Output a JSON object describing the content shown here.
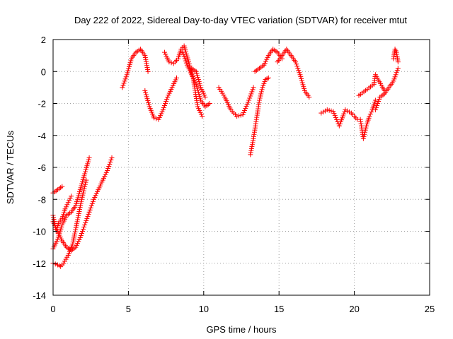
{
  "chart_data": {
    "type": "scatter",
    "title": "Day 222 of 2022, Sidereal Day-to-day VTEC variation (SDTVAR) for receiver mtut",
    "xlabel": "GPS time / hours",
    "ylabel": "SDTVAR / TECUs",
    "xlim": [
      0,
      25
    ],
    "ylim": [
      -14,
      2
    ],
    "xticks": [
      0,
      5,
      10,
      15,
      20,
      25
    ],
    "yticks": [
      2,
      0,
      -2,
      -4,
      -6,
      -8,
      -10,
      -12,
      -14
    ],
    "xtick_labels": [
      "0",
      "5",
      "10",
      "15",
      "20",
      "25"
    ],
    "ytick_labels": [
      "2",
      "0",
      "-2",
      "-4",
      "-6",
      "-8",
      "-10",
      "-12",
      "-14"
    ],
    "grid": true,
    "marker": "+",
    "color": "#ff0000",
    "series": [
      {
        "name": "s1",
        "x": [
          0.0,
          0.3,
          0.6
        ],
        "y": [
          -7.6,
          -7.4,
          -7.2
        ]
      },
      {
        "name": "s2",
        "x": [
          0.0,
          0.2,
          0.4,
          0.6,
          0.8,
          1.0,
          1.2
        ],
        "y": [
          -9.0,
          -10.0,
          -9.4,
          -9.2,
          -8.6,
          -8.2,
          -7.8
        ]
      },
      {
        "name": "s3",
        "x": [
          0.0,
          0.3,
          0.6,
          0.9,
          1.2,
          1.5,
          1.8,
          2.1,
          2.4
        ],
        "y": [
          -11.1,
          -10.5,
          -9.6,
          -9.0,
          -8.8,
          -8.4,
          -7.4,
          -6.4,
          -5.4
        ]
      },
      {
        "name": "s4",
        "x": [
          0.0,
          0.3,
          0.5,
          0.7,
          1.0,
          1.3,
          1.6,
          1.9,
          2.2
        ],
        "y": [
          -12.0,
          -12.1,
          -12.2,
          -12.0,
          -11.5,
          -10.8,
          -9.4,
          -8.0,
          -6.8
        ]
      },
      {
        "name": "s5",
        "x": [
          0.0,
          0.3,
          0.6,
          0.9,
          1.2,
          1.5,
          1.8,
          2.1,
          2.4,
          2.7,
          3.0,
          3.3,
          3.6,
          3.9
        ],
        "y": [
          -9.4,
          -10.0,
          -10.6,
          -11.0,
          -11.2,
          -11.0,
          -10.4,
          -9.6,
          -8.8,
          -8.0,
          -7.4,
          -6.8,
          -6.2,
          -5.4
        ]
      },
      {
        "name": "s6",
        "x": [
          4.6,
          4.9,
          5.2,
          5.5,
          5.8,
          6.1,
          6.3
        ],
        "y": [
          -1.0,
          -0.2,
          0.8,
          1.2,
          1.4,
          1.0,
          0.0
        ]
      },
      {
        "name": "s7",
        "x": [
          6.1,
          6.4,
          6.7,
          7.0,
          7.3,
          7.6,
          7.9,
          8.2
        ],
        "y": [
          -1.2,
          -2.2,
          -2.9,
          -3.0,
          -2.4,
          -1.6,
          -1.0,
          -0.4
        ]
      },
      {
        "name": "s8",
        "x": [
          7.4,
          7.7,
          8.0,
          8.3,
          8.5,
          8.7,
          9.0,
          9.3,
          9.6,
          9.9
        ],
        "y": [
          1.2,
          0.6,
          0.5,
          0.8,
          1.4,
          1.6,
          0.6,
          -0.4,
          -2.2,
          -2.8
        ]
      },
      {
        "name": "s9",
        "x": [
          8.6,
          8.9,
          9.2,
          9.5,
          9.8,
          10.1,
          10.4
        ],
        "y": [
          1.2,
          0.4,
          -0.2,
          -0.8,
          -1.8,
          -2.2,
          -2.0
        ]
      },
      {
        "name": "s10",
        "x": [
          9.2,
          9.5,
          9.8,
          10.1
        ],
        "y": [
          0.2,
          0.0,
          -1.0,
          -1.6
        ]
      },
      {
        "name": "s11",
        "x": [
          11.0,
          11.4,
          11.8,
          12.2,
          12.6,
          13.0,
          13.3
        ],
        "y": [
          -1.0,
          -1.6,
          -2.4,
          -2.8,
          -2.7,
          -1.8,
          -1.0
        ]
      },
      {
        "name": "s12",
        "x": [
          13.1,
          13.3,
          13.5,
          13.7,
          13.9,
          14.1,
          14.3
        ],
        "y": [
          -5.2,
          -4.2,
          -3.0,
          -1.8,
          -1.0,
          -0.5,
          -0.4
        ]
      },
      {
        "name": "s13",
        "x": [
          13.4,
          13.7,
          14.0,
          14.3,
          14.6,
          14.9,
          15.2
        ],
        "y": [
          0.0,
          0.2,
          0.4,
          1.0,
          1.4,
          1.2,
          0.8
        ]
      },
      {
        "name": "s14",
        "x": [
          14.9,
          15.2,
          15.5,
          15.8,
          16.1,
          16.4,
          16.7,
          17.0
        ],
        "y": [
          0.6,
          1.0,
          1.4,
          1.0,
          0.6,
          -0.2,
          -1.2,
          -1.6
        ]
      },
      {
        "name": "s15",
        "x": [
          17.8,
          18.2,
          18.6,
          19.0,
          19.4,
          19.8,
          20.2
        ],
        "y": [
          -2.6,
          -2.4,
          -2.5,
          -3.4,
          -2.4,
          -2.6,
          -3.0
        ]
      },
      {
        "name": "s16",
        "x": [
          20.4,
          20.6,
          20.8,
          21.0,
          21.2,
          21.4
        ],
        "y": [
          -3.0,
          -4.2,
          -3.4,
          -2.8,
          -2.4,
          -1.8
        ]
      },
      {
        "name": "s17",
        "x": [
          21.4,
          21.7,
          22.0,
          22.3,
          22.6,
          22.9
        ],
        "y": [
          -2.4,
          -1.6,
          -1.4,
          -1.0,
          -0.6,
          0.2
        ]
      },
      {
        "name": "s18",
        "x": [
          22.6,
          22.7,
          22.8,
          22.9
        ],
        "y": [
          0.8,
          1.4,
          1.2,
          0.6
        ]
      },
      {
        "name": "s19",
        "x": [
          20.3,
          21.3,
          21.4,
          22.0
        ],
        "y": [
          -1.5,
          -0.8,
          -0.2,
          -1.2
        ]
      }
    ]
  }
}
